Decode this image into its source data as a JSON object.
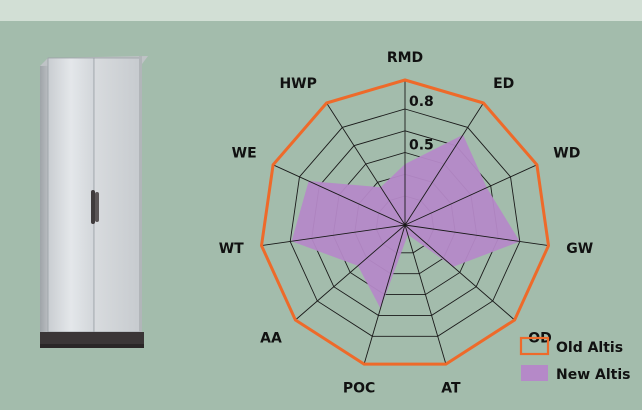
{
  "colors": {
    "background": "#a3bcac",
    "top_band": "#d2dfd5",
    "old_series": "#ee6a2a",
    "new_series": "#b589c8",
    "grid": "#1a1a1a"
  },
  "chart_data": {
    "type": "radar",
    "axes": [
      "RMD",
      "ED",
      "WD",
      "GW",
      "OD",
      "AT",
      "POC",
      "AA",
      "WT",
      "WE",
      "HWP"
    ],
    "scale_max": 1.0,
    "tick_labels": [
      {
        "label": "0.5",
        "value": 0.5
      },
      {
        "label": "0.8",
        "value": 0.8
      }
    ],
    "series": [
      {
        "name": "Old Altis",
        "style": "outline",
        "values": [
          1,
          1,
          1,
          1,
          1,
          1,
          1,
          1,
          1,
          1,
          1
        ]
      },
      {
        "name": "New Altis",
        "style": "fill",
        "values": [
          0.42,
          0.74,
          0.62,
          0.8,
          0.44,
          0.07,
          0.6,
          0.43,
          0.79,
          0.73,
          0.31
        ]
      }
    ],
    "legend_position": "bottom-right",
    "grid": true
  }
}
